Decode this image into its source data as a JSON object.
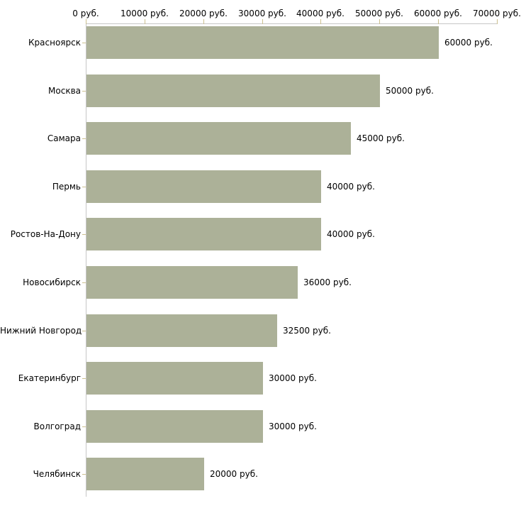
{
  "chart_data": {
    "type": "bar",
    "orientation": "horizontal",
    "unit": "руб.",
    "categories": [
      "Красноярск",
      "Москва",
      "Самара",
      "Пермь",
      "Ростов-На-Дону",
      "Новосибирск",
      "Нижний Новгород",
      "Екатеринбург",
      "Волгоград",
      "Челябинск"
    ],
    "values": [
      60000,
      50000,
      45000,
      40000,
      40000,
      36000,
      32500,
      30000,
      30000,
      20000
    ],
    "value_labels": [
      "60000 руб.",
      "50000 руб.",
      "45000 руб.",
      "40000 руб.",
      "40000 руб.",
      "36000 руб.",
      "32500 руб.",
      "30000 руб.",
      "30000 руб.",
      "20000 руб."
    ],
    "x_axis": {
      "position": "top",
      "range": [
        0,
        70000
      ],
      "ticks": [
        0,
        10000,
        20000,
        30000,
        40000,
        50000,
        60000,
        70000
      ],
      "tick_labels": [
        "0 руб.",
        "10000 руб.",
        "20000 руб.",
        "30000 руб.",
        "40000 руб.",
        "50000 руб.",
        "60000 руб.",
        "70000 руб."
      ]
    },
    "grid": false,
    "legend": false,
    "colors": {
      "bar": "#acb198",
      "axis": "#c6c6c6",
      "tick": "#ccc08f",
      "text": "#000000",
      "background": "#ffffff"
    }
  }
}
